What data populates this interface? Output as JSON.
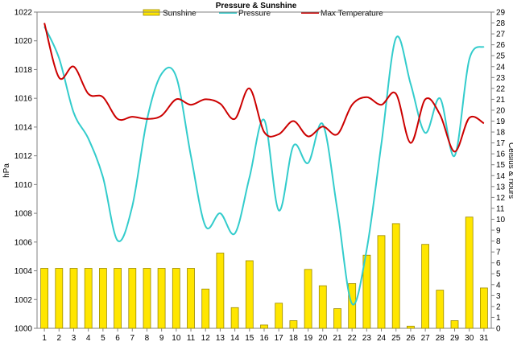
{
  "chart_data": {
    "type": "bar",
    "title": "Pressure & Sunshine",
    "ylabel_left": "hPa",
    "ylabel_right": "Celsius & hours",
    "x": [
      1,
      2,
      3,
      4,
      5,
      6,
      7,
      8,
      9,
      10,
      11,
      12,
      13,
      14,
      15,
      16,
      17,
      18,
      19,
      20,
      21,
      22,
      23,
      24,
      25,
      26,
      27,
      28,
      29,
      30,
      31
    ],
    "ylim_left": [
      1000,
      1022
    ],
    "ylim_right": [
      0,
      29
    ],
    "series": [
      {
        "name": "Sunshine",
        "type": "bar",
        "axis": "right",
        "color": "#FFE600",
        "values": [
          5.5,
          5.5,
          5.5,
          5.5,
          5.5,
          5.5,
          5.5,
          5.5,
          5.5,
          5.5,
          5.5,
          3.6,
          6.9,
          1.9,
          6.2,
          0.3,
          2.3,
          0.7,
          5.4,
          3.9,
          1.8,
          4.1,
          6.7,
          8.5,
          9.6,
          0.2,
          7.7,
          3.5,
          0.7,
          10.2,
          3.7
        ]
      },
      {
        "name": "Pressure",
        "type": "line",
        "axis": "left",
        "color": "#33CCCC",
        "values": [
          1021.0,
          1018.8,
          1015.0,
          1013.2,
          1010.5,
          1006.1,
          1008.5,
          1014.5,
          1017.7,
          1017.5,
          1012.0,
          1007.1,
          1008.0,
          1006.6,
          1010.5,
          1014.5,
          1008.2,
          1012.7,
          1011.5,
          1014.2,
          1008.2,
          1001.7,
          1005.5,
          1012.8,
          1020.2,
          1017.0,
          1013.6,
          1016.0,
          1012.0,
          1018.7,
          1019.6
        ]
      },
      {
        "name": "Max Temperature",
        "type": "line",
        "axis": "right",
        "color": "#CC0000",
        "values": [
          28.0,
          23.0,
          24.0,
          21.5,
          21.2,
          19.2,
          19.4,
          19.2,
          19.5,
          21.0,
          20.5,
          21.0,
          20.6,
          19.2,
          22.0,
          18.0,
          17.8,
          19.0,
          17.6,
          18.5,
          17.8,
          20.5,
          21.2,
          20.5,
          21.5,
          17.0,
          21.0,
          19.6,
          16.2,
          19.3,
          18.8
        ]
      }
    ],
    "yticks_left": [
      "1000",
      "1002",
      "1004",
      "1006",
      "1008",
      "1010",
      "1012",
      "1014",
      "1016",
      "1018",
      "1020",
      "1022"
    ],
    "yticks_right": [
      "0",
      "1",
      "2",
      "3",
      "4",
      "5",
      "6",
      "7",
      "8",
      "9",
      "10",
      "11",
      "12",
      "13",
      "14",
      "15",
      "16",
      "17",
      "18",
      "19",
      "20",
      "21",
      "22",
      "23",
      "24",
      "25",
      "26",
      "27",
      "28",
      "29"
    ],
    "legend": {
      "position": "top",
      "items": [
        "Sunshine",
        "Pressure",
        "Max Temperature"
      ]
    }
  }
}
